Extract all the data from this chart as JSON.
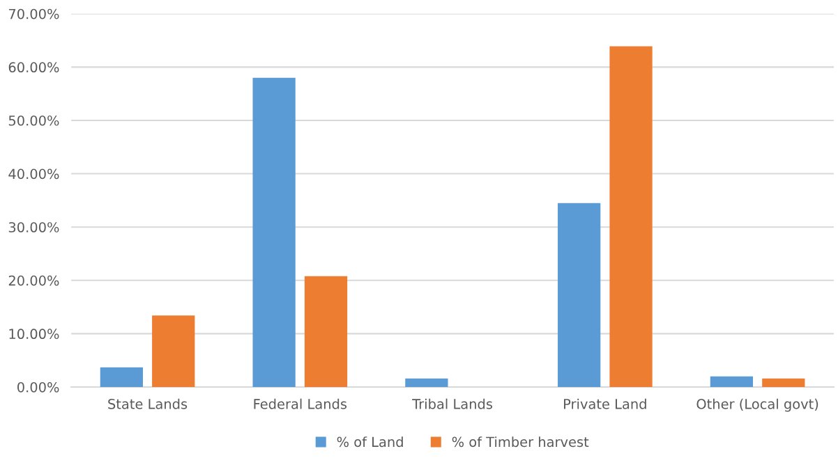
{
  "chart_data": {
    "type": "bar",
    "categories": [
      "State Lands",
      "Federal Lands",
      "Tribal Lands",
      "Private Land",
      "Other (Local govt)"
    ],
    "series": [
      {
        "name": "% of Land",
        "color": "#5b9bd5",
        "values": [
          3.7,
          58.0,
          1.6,
          34.5,
          2.0
        ]
      },
      {
        "name": "% of Timber harvest",
        "color": "#ed7d31",
        "values": [
          13.4,
          20.8,
          0,
          63.9,
          1.6
        ]
      }
    ],
    "ylim": [
      0,
      70
    ],
    "yticks": [
      {
        "value": 0,
        "label": "0.00%"
      },
      {
        "value": 10,
        "label": "10.00%"
      },
      {
        "value": 20,
        "label": "20.00%"
      },
      {
        "value": 30,
        "label": "30.00%"
      },
      {
        "value": 40,
        "label": "40.00%"
      },
      {
        "value": 50,
        "label": "50.00%"
      },
      {
        "value": 60,
        "label": "60.00%"
      },
      {
        "value": 70,
        "label": "70.00%"
      }
    ],
    "grid": "y",
    "legend": "bottom"
  }
}
